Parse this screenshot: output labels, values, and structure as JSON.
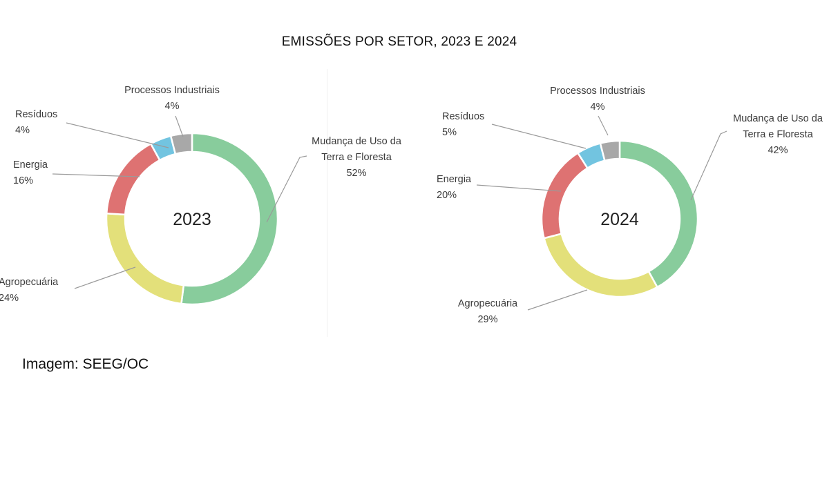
{
  "chart_data": {
    "title": "EMISSÕES POR SETOR, 2023 E 2024",
    "charts": [
      {
        "type": "pie",
        "variant": "donut",
        "center_label": "2023",
        "slices": [
          {
            "name": "Mudança de Uso da Terra e Floresta",
            "value": 52,
            "label_lines": [
              "Mudança de Uso da",
              "Terra e Floresta"
            ],
            "value_label": "52%",
            "color": "#88cc9c"
          },
          {
            "name": "Agropecuária",
            "value": 24,
            "label_lines": [
              "Agropecuária"
            ],
            "value_label": "24%",
            "color": "#e3e07a"
          },
          {
            "name": "Energia",
            "value": 16,
            "label_lines": [
              "Energia"
            ],
            "value_label": "16%",
            "color": "#de7272"
          },
          {
            "name": "Resíduos",
            "value": 4,
            "label_lines": [
              "Resíduos"
            ],
            "value_label": "4%",
            "color": "#72c4e0"
          },
          {
            "name": "Processos Industriais",
            "value": 4,
            "label_lines": [
              "Processos Industriais"
            ],
            "value_label": "4%",
            "color": "#a8a8a8"
          }
        ]
      },
      {
        "type": "pie",
        "variant": "donut",
        "center_label": "2024",
        "slices": [
          {
            "name": "Mudança de Uso da Terra e Floresta",
            "value": 42,
            "label_lines": [
              "Mudança de Uso da",
              "Terra e Floresta"
            ],
            "value_label": "42%",
            "color": "#88cc9c"
          },
          {
            "name": "Agropecuária",
            "value": 29,
            "label_lines": [
              "Agropecuária"
            ],
            "value_label": "29%",
            "color": "#e3e07a"
          },
          {
            "name": "Energia",
            "value": 20,
            "label_lines": [
              "Energia"
            ],
            "value_label": "20%",
            "color": "#de7272"
          },
          {
            "name": "Resíduos",
            "value": 5,
            "label_lines": [
              "Resíduos"
            ],
            "value_label": "5%",
            "color": "#72c4e0"
          },
          {
            "name": "Processos Industriais",
            "value": 4,
            "label_lines": [
              "Processos Industriais"
            ],
            "value_label": "4%",
            "color": "#a8a8a8"
          }
        ]
      }
    ]
  },
  "credit": "Imagem: SEEG/OC"
}
